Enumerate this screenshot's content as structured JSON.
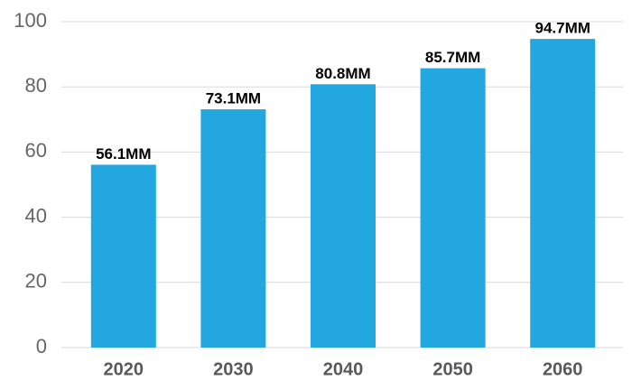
{
  "chart_data": {
    "type": "bar",
    "categories": [
      "2020",
      "2030",
      "2040",
      "2050",
      "2060"
    ],
    "values": [
      56.1,
      73.1,
      80.8,
      85.7,
      94.7
    ],
    "value_labels": [
      "56.1MM",
      "73.1MM",
      "80.8MM",
      "85.7MM",
      "94.7MM"
    ],
    "color": "#22a7e0",
    "ylim": [
      0,
      100
    ],
    "yticks": [
      0,
      20,
      40,
      60,
      80,
      100
    ],
    "grid": true
  }
}
